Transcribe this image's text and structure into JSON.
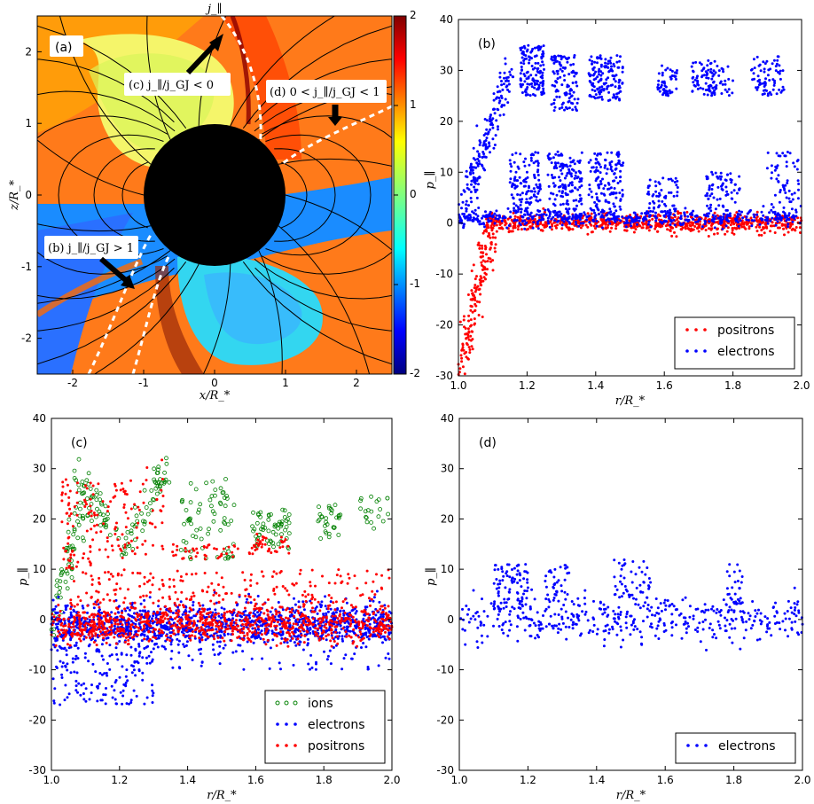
{
  "colors": {
    "positrons": "#ff0000",
    "electrons": "#0000ff",
    "ions": "#008000",
    "star": "#000000"
  },
  "chart_data": [
    {
      "id": "a",
      "type": "heatmap",
      "panel_label": "(a)",
      "xlabel": "x/R_*",
      "ylabel": "z/R_*",
      "xlim": [
        -2.5,
        2.5
      ],
      "ylim": [
        -2.5,
        2.5
      ],
      "xticks": [
        -2,
        -1,
        0,
        1,
        2
      ],
      "yticks": [
        -2,
        -1,
        0,
        1,
        2
      ],
      "colorbar": {
        "min": -2,
        "max": 2,
        "ticks": [
          -2,
          -1,
          0,
          1,
          2
        ],
        "colormap": "jet"
      },
      "star_radius": 1.0,
      "annotations": [
        {
          "id": "jpar",
          "text": "j_∥"
        },
        {
          "id": "c",
          "text": "(c) j_∥/j_GJ < 0"
        },
        {
          "id": "d",
          "text": "(d) 0 < j_∥/j_GJ < 1"
        },
        {
          "id": "b",
          "text": "(b) j_∥/j_GJ > 1"
        }
      ]
    },
    {
      "id": "b",
      "type": "scatter",
      "panel_label": "(b)",
      "xlabel": "r/R_*",
      "ylabel": "p_∥",
      "xlim": [
        1.0,
        2.0
      ],
      "ylim": [
        -30,
        40
      ],
      "xticks": [
        1.0,
        1.2,
        1.4,
        1.6,
        1.8,
        2.0
      ],
      "yticks": [
        -30,
        -20,
        -10,
        0,
        10,
        20,
        30,
        40
      ],
      "legend_position": "lower-right",
      "series": [
        {
          "name": "positrons",
          "color": "#ff0000",
          "marker": "dot",
          "clusters": [
            {
              "x": [
                1.0,
                1.1
              ],
              "y": [
                -30,
                0
              ],
              "n": 180,
              "sx": 0.012,
              "sy": 2.0,
              "kind": "ramp"
            },
            {
              "x": [
                1.08,
                2.0
              ],
              "y": [
                0,
                0
              ],
              "n": 800,
              "sx": 0.5,
              "sy": 0.9,
              "kind": "band"
            }
          ]
        },
        {
          "name": "electrons",
          "color": "#0000ff",
          "marker": "dot",
          "clusters": [
            {
              "x": [
                1.0,
                1.15
              ],
              "y": [
                0,
                30
              ],
              "n": 200,
              "sx": 0.01,
              "sy": 2.0,
              "kind": "ramp"
            },
            {
              "x": [
                1.0,
                2.0
              ],
              "y": [
                1,
                1
              ],
              "n": 500,
              "sx": 0.5,
              "sy": 0.8,
              "kind": "band"
            },
            {
              "x": [
                1.18,
                1.25
              ],
              "y": [
                25,
                35
              ],
              "n": 130,
              "kind": "box"
            },
            {
              "x": [
                1.27,
                1.35
              ],
              "y": [
                22,
                33
              ],
              "n": 110,
              "kind": "box"
            },
            {
              "x": [
                1.38,
                1.48
              ],
              "y": [
                24,
                33
              ],
              "n": 140,
              "kind": "box"
            },
            {
              "x": [
                1.58,
                1.64
              ],
              "y": [
                25,
                31
              ],
              "n": 50,
              "kind": "box"
            },
            {
              "x": [
                1.68,
                1.75
              ],
              "y": [
                25,
                32
              ],
              "n": 60,
              "kind": "box"
            },
            {
              "x": [
                1.72,
                1.8
              ],
              "y": [
                25,
                31
              ],
              "n": 40,
              "kind": "box"
            },
            {
              "x": [
                1.85,
                1.95
              ],
              "y": [
                25,
                33
              ],
              "n": 70,
              "kind": "box"
            },
            {
              "x": [
                1.15,
                1.24
              ],
              "y": [
                2,
                14
              ],
              "n": 120,
              "kind": "box"
            },
            {
              "x": [
                1.26,
                1.36
              ],
              "y": [
                2,
                14
              ],
              "n": 140,
              "kind": "box"
            },
            {
              "x": [
                1.38,
                1.48
              ],
              "y": [
                2,
                14
              ],
              "n": 130,
              "kind": "box"
            },
            {
              "x": [
                1.55,
                1.64
              ],
              "y": [
                2,
                9
              ],
              "n": 60,
              "kind": "box"
            },
            {
              "x": [
                1.72,
                1.82
              ],
              "y": [
                2,
                10
              ],
              "n": 70,
              "kind": "box"
            },
            {
              "x": [
                1.9,
                2.0
              ],
              "y": [
                2,
                14
              ],
              "n": 60,
              "kind": "box"
            }
          ]
        }
      ]
    },
    {
      "id": "c",
      "type": "scatter",
      "panel_label": "(c)",
      "xlabel": "r/R_*",
      "ylabel": "p_∥",
      "xlim": [
        1.0,
        2.0
      ],
      "ylim": [
        -30,
        40
      ],
      "xticks": [
        1.0,
        1.2,
        1.4,
        1.6,
        1.8,
        2.0
      ],
      "yticks": [
        -30,
        -20,
        -10,
        0,
        10,
        20,
        30,
        40
      ],
      "legend_position": "lower-right",
      "series": [
        {
          "name": "ions",
          "color": "#008000",
          "marker": "ring",
          "clusters": [
            {
              "x": [
                1.0,
                1.1
              ],
              "y": [
                0,
                25
              ],
              "n": 70,
              "sx": 0.01,
              "sy": 2.5,
              "kind": "ramp"
            },
            {
              "x": [
                1.08,
                1.22
              ],
              "y": [
                28,
                14
              ],
              "n": 50,
              "sx": 0.01,
              "sy": 1.5,
              "kind": "ramp"
            },
            {
              "x": [
                1.22,
                1.33
              ],
              "y": [
                14,
                30
              ],
              "n": 55,
              "sx": 0.01,
              "sy": 1.5,
              "kind": "ramp"
            },
            {
              "x": [
                1.38,
                1.54
              ],
              "y": [
                12,
                28
              ],
              "n": 70,
              "kind": "box"
            },
            {
              "x": [
                1.59,
                1.7
              ],
              "y": [
                14,
                22
              ],
              "n": 60,
              "kind": "box"
            },
            {
              "x": [
                1.78,
                1.85
              ],
              "y": [
                16,
                23
              ],
              "n": 30,
              "kind": "box"
            },
            {
              "x": [
                1.9,
                2.0
              ],
              "y": [
                18,
                25
              ],
              "n": 20,
              "kind": "box"
            }
          ]
        },
        {
          "name": "electrons",
          "color": "#0000ff",
          "marker": "dot",
          "clusters": [
            {
              "x": [
                1.0,
                2.0
              ],
              "y": [
                -1,
                -1
              ],
              "n": 1300,
              "sx": 0.5,
              "sy": 2.0,
              "kind": "band"
            },
            {
              "x": [
                1.0,
                1.3
              ],
              "y": [
                -17,
                -5
              ],
              "n": 150,
              "kind": "box"
            },
            {
              "x": [
                1.3,
                2.0
              ],
              "y": [
                -10,
                -5
              ],
              "n": 60,
              "kind": "box"
            }
          ]
        },
        {
          "name": "positrons",
          "color": "#ff0000",
          "marker": "dot",
          "clusters": [
            {
              "x": [
                1.0,
                2.0
              ],
              "y": [
                -1,
                -1
              ],
              "n": 900,
              "sx": 0.5,
              "sy": 1.8,
              "kind": "band"
            },
            {
              "x": [
                1.03,
                1.12
              ],
              "y": [
                10,
                28
              ],
              "n": 70,
              "kind": "box"
            },
            {
              "x": [
                1.12,
                1.22
              ],
              "y": [
                12,
                28
              ],
              "n": 50,
              "kind": "box"
            },
            {
              "x": [
                1.22,
                1.33
              ],
              "y": [
                12,
                32
              ],
              "n": 40,
              "kind": "box"
            },
            {
              "x": [
                1.05,
                2.0
              ],
              "y": [
                2,
                10
              ],
              "n": 220,
              "kind": "box"
            },
            {
              "x": [
                1.35,
                1.55
              ],
              "y": [
                12,
                15
              ],
              "n": 40,
              "kind": "box"
            },
            {
              "x": [
                1.58,
                1.7
              ],
              "y": [
                13,
                17
              ],
              "n": 40,
              "kind": "box"
            }
          ]
        }
      ]
    },
    {
      "id": "d",
      "type": "scatter",
      "panel_label": "(d)",
      "xlabel": "r/R_*",
      "ylabel": "p_∥",
      "xlim": [
        1.0,
        2.0
      ],
      "ylim": [
        -30,
        40
      ],
      "xticks": [
        1.0,
        1.2,
        1.4,
        1.6,
        1.8,
        2.0
      ],
      "yticks": [
        -30,
        -20,
        -10,
        0,
        10,
        20,
        30,
        40
      ],
      "legend_position": "lower-right",
      "series": [
        {
          "name": "electrons",
          "color": "#0000ff",
          "marker": "dot",
          "clusters": [
            {
              "x": [
                1.0,
                2.0
              ],
              "y": [
                0,
                0
              ],
              "n": 420,
              "sx": 0.5,
              "sy": 2.3,
              "kind": "band"
            },
            {
              "x": [
                1.1,
                1.2
              ],
              "y": [
                2,
                11
              ],
              "n": 90,
              "kind": "box"
            },
            {
              "x": [
                1.25,
                1.32
              ],
              "y": [
                3,
                11
              ],
              "n": 40,
              "kind": "box"
            },
            {
              "x": [
                1.45,
                1.56
              ],
              "y": [
                4,
                12
              ],
              "n": 50,
              "kind": "box"
            },
            {
              "x": [
                1.78,
                1.83
              ],
              "y": [
                3,
                11
              ],
              "n": 30,
              "kind": "box"
            }
          ]
        }
      ]
    }
  ]
}
